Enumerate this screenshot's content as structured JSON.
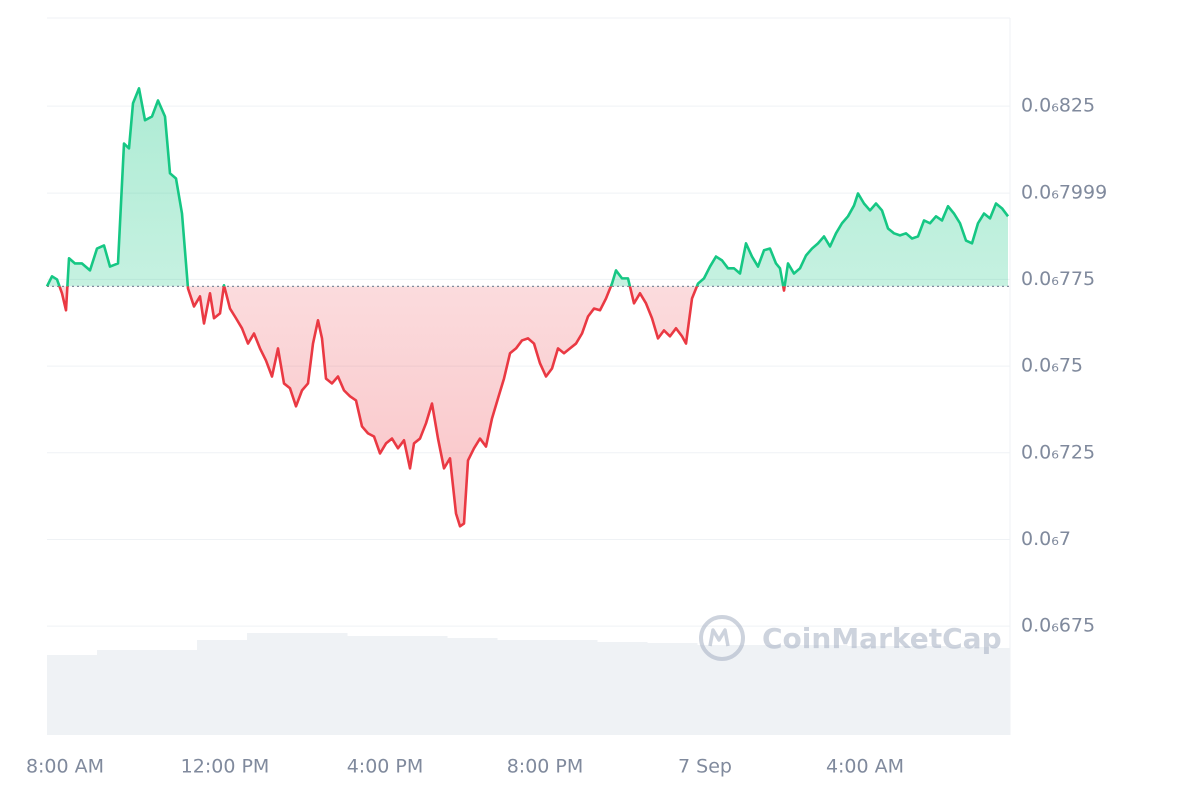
{
  "chart_data": {
    "type": "line",
    "watermark": "CoinMarketCap",
    "xlim": [
      7.55,
      31.625
    ],
    "ylim": [
      6.436e-07,
      8.504e-07
    ],
    "baseline": 7.73e-07,
    "grid": true,
    "colors": {
      "above": "#16c784",
      "below": "#ea3943",
      "volume": "#eff2f5"
    },
    "xticks": [
      {
        "value": 8,
        "label": "8:00 AM"
      },
      {
        "value": 12,
        "label": "12:00 PM"
      },
      {
        "value": 16,
        "label": "4:00 PM"
      },
      {
        "value": 20,
        "label": "8:00 PM"
      },
      {
        "value": 24,
        "label": "7 Sep"
      },
      {
        "value": 28,
        "label": "4:00 AM"
      }
    ],
    "yticks": [
      {
        "value": 8.25e-07,
        "label": "0.0₆825"
      },
      {
        "value": 7.999e-07,
        "label": "0.0₆7999"
      },
      {
        "value": 7.75e-07,
        "label": "0.0₆775"
      },
      {
        "value": 7.5e-07,
        "label": "0.0₆75"
      },
      {
        "value": 7.25e-07,
        "label": "0.0₆725"
      },
      {
        "value": 7e-07,
        "label": "0.0₆7"
      },
      {
        "value": 6.75e-07,
        "label": "0.0₆675"
      }
    ],
    "x": [
      7.55,
      7.675,
      7.8,
      7.925,
      8.025,
      8.1,
      8.25,
      8.425,
      8.625,
      8.8,
      8.975,
      9.125,
      9.325,
      9.475,
      9.6,
      9.7,
      9.85,
      10,
      10.175,
      10.325,
      10.5,
      10.625,
      10.775,
      10.925,
      11.075,
      11.225,
      11.375,
      11.475,
      11.625,
      11.725,
      11.875,
      11.975,
      12.125,
      12.275,
      12.425,
      12.575,
      12.725,
      12.875,
      13.025,
      13.175,
      13.325,
      13.475,
      13.625,
      13.775,
      13.925,
      14.075,
      14.2,
      14.325,
      14.425,
      14.525,
      14.675,
      14.825,
      14.975,
      15.125,
      15.275,
      15.425,
      15.575,
      15.725,
      15.875,
      16.025,
      16.175,
      16.325,
      16.475,
      16.625,
      16.725,
      16.875,
      17.025,
      17.175,
      17.325,
      17.475,
      17.625,
      17.775,
      17.875,
      17.975,
      18.075,
      18.225,
      18.375,
      18.525,
      18.675,
      18.825,
      18.975,
      19.125,
      19.275,
      19.425,
      19.575,
      19.725,
      19.875,
      20.025,
      20.175,
      20.325,
      20.475,
      20.625,
      20.775,
      20.925,
      21.075,
      21.225,
      21.375,
      21.525,
      21.675,
      21.775,
      21.925,
      22.075,
      22.225,
      22.375,
      22.525,
      22.675,
      22.825,
      22.975,
      23.125,
      23.275,
      23.425,
      23.525,
      23.675,
      23.825,
      23.975,
      24.125,
      24.275,
      24.425,
      24.575,
      24.725,
      24.875,
      25.025,
      25.175,
      25.325,
      25.475,
      25.625,
      25.775,
      25.875,
      25.975,
      26.075,
      26.225,
      26.375,
      26.525,
      26.675,
      26.825,
      26.975,
      27.125,
      27.275,
      27.425,
      27.575,
      27.725,
      27.825,
      27.975,
      28.125,
      28.275,
      28.425,
      28.575,
      28.725,
      28.875,
      29.025,
      29.175,
      29.325,
      29.475,
      29.625,
      29.775,
      29.925,
      30.075,
      30.225,
      30.375,
      30.525,
      30.675,
      30.825,
      30.975,
      31.125,
      31.275,
      31.425,
      31.575
    ],
    "values": [
      7.73e-07,
      7.759e-07,
      7.75e-07,
      7.71e-07,
      7.661e-07,
      7.811e-07,
      7.796e-07,
      7.796e-07,
      7.776e-07,
      7.839e-07,
      7.848e-07,
      7.787e-07,
      7.796e-07,
      8.142e-07,
      8.128e-07,
      8.258e-07,
      8.301e-07,
      8.209e-07,
      8.22e-07,
      8.266e-07,
      8.22e-07,
      8.056e-07,
      8.041e-07,
      7.94e-07,
      7.724e-07,
      7.672e-07,
      7.701e-07,
      7.623e-07,
      7.71e-07,
      7.638e-07,
      7.652e-07,
      7.733e-07,
      7.666e-07,
      7.638e-07,
      7.609e-07,
      7.565e-07,
      7.594e-07,
      7.551e-07,
      7.516e-07,
      7.47e-07,
      7.551e-07,
      7.45e-07,
      7.436e-07,
      7.384e-07,
      7.43e-07,
      7.45e-07,
      7.565e-07,
      7.632e-07,
      7.58e-07,
      7.464e-07,
      7.45e-07,
      7.47e-07,
      7.43e-07,
      7.413e-07,
      7.401e-07,
      7.326e-07,
      7.306e-07,
      7.297e-07,
      7.248e-07,
      7.277e-07,
      7.291e-07,
      7.263e-07,
      7.286e-07,
      7.205e-07,
      7.277e-07,
      7.291e-07,
      7.335e-07,
      7.392e-07,
      7.291e-07,
      7.205e-07,
      7.234e-07,
      7.075e-07,
      7.038e-07,
      7.046e-07,
      7.228e-07,
      7.263e-07,
      7.291e-07,
      7.268e-07,
      7.349e-07,
      7.407e-07,
      7.464e-07,
      7.537e-07,
      7.551e-07,
      7.574e-07,
      7.58e-07,
      7.565e-07,
      7.508e-07,
      7.47e-07,
      7.493e-07,
      7.551e-07,
      7.537e-07,
      7.551e-07,
      7.565e-07,
      7.594e-07,
      7.643e-07,
      7.666e-07,
      7.661e-07,
      7.695e-07,
      7.738e-07,
      7.776e-07,
      7.753e-07,
      7.753e-07,
      7.681e-07,
      7.71e-07,
      7.681e-07,
      7.638e-07,
      7.58e-07,
      7.603e-07,
      7.586e-07,
      7.609e-07,
      7.586e-07,
      7.565e-07,
      7.695e-07,
      7.738e-07,
      7.753e-07,
      7.787e-07,
      7.816e-07,
      7.805e-07,
      7.782e-07,
      7.782e-07,
      7.767e-07,
      7.854e-07,
      7.816e-07,
      7.787e-07,
      7.834e-07,
      7.839e-07,
      7.796e-07,
      7.782e-07,
      7.718e-07,
      7.796e-07,
      7.767e-07,
      7.782e-07,
      7.819e-07,
      7.839e-07,
      7.854e-07,
      7.874e-07,
      7.845e-07,
      7.883e-07,
      7.912e-07,
      7.932e-07,
      7.963e-07,
      7.998e-07,
      7.969e-07,
      7.949e-07,
      7.969e-07,
      7.949e-07,
      7.897e-07,
      7.883e-07,
      7.877e-07,
      7.883e-07,
      7.868e-07,
      7.874e-07,
      7.92e-07,
      7.912e-07,
      7.932e-07,
      7.92e-07,
      7.961e-07,
      7.94e-07,
      7.912e-07,
      7.862e-07,
      7.854e-07,
      7.912e-07,
      7.94e-07,
      7.926e-07,
      7.969e-07,
      7.955e-07,
      7.932e-07
    ],
    "volume": {
      "vlim": [
        0,
        120
      ],
      "x": [
        7.55,
        8.8,
        10.05,
        11.3,
        12.55,
        13.8,
        15.05,
        16.3,
        17.55,
        18.8,
        20.05,
        21.3,
        22.55,
        23.8,
        25.05,
        26.3,
        27.55,
        28.8,
        30.05,
        31.3
      ],
      "values": [
        80,
        85,
        85,
        95,
        102,
        102,
        99,
        99,
        97,
        95,
        95,
        93,
        92,
        90,
        90,
        90,
        89,
        89,
        88,
        87
      ]
    }
  }
}
